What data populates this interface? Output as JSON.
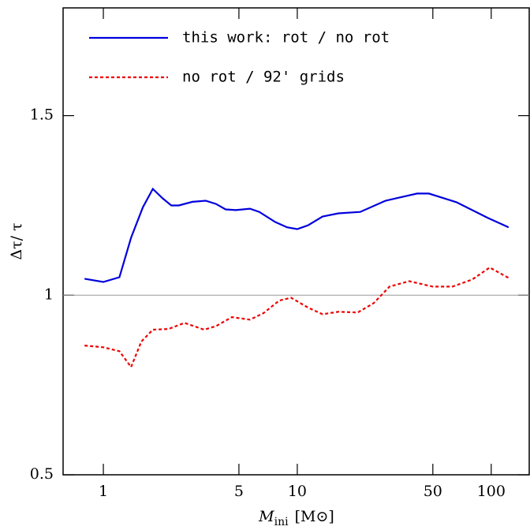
{
  "chart_data": {
    "type": "line",
    "xlabel": {
      "symbol": "M",
      "subscript": "ini",
      "unit": "[M⊙]"
    },
    "ylabel": "Δτ/ τ",
    "xlog": true,
    "xlim": [
      0.62,
      157
    ],
    "ylim": [
      0.5,
      1.8
    ],
    "xticks": [
      1,
      5,
      10,
      50,
      100
    ],
    "yticks": [
      0.5,
      1,
      1.5
    ],
    "hline": 1,
    "legend": "upper left",
    "series": [
      {
        "name": "this work: rot / no rot",
        "color": "#0000dd",
        "dash": false,
        "x": [
          0.8,
          1.0,
          1.21,
          1.39,
          1.6,
          1.8,
          2.02,
          2.24,
          2.45,
          2.88,
          3.37,
          3.81,
          4.27,
          4.82,
          5.7,
          6.37,
          7.68,
          8.86,
          10,
          11.4,
          13.5,
          16.3,
          21.1,
          28.5,
          41.5,
          47.7,
          66.2,
          96.2,
          123
        ],
        "values": [
          1.046,
          1.037,
          1.05,
          1.16,
          1.245,
          1.296,
          1.27,
          1.25,
          1.25,
          1.26,
          1.263,
          1.254,
          1.239,
          1.237,
          1.241,
          1.232,
          1.204,
          1.189,
          1.184,
          1.195,
          1.219,
          1.228,
          1.232,
          1.263,
          1.283,
          1.283,
          1.259,
          1.215,
          1.189
        ]
      },
      {
        "name": "no rot / 92' grids",
        "color": "#ee0000",
        "dash": true,
        "x": [
          0.8,
          1.0,
          1.21,
          1.39,
          1.57,
          1.8,
          2.17,
          2.62,
          3.31,
          3.81,
          4.6,
          5.7,
          6.69,
          8.07,
          9.28,
          11.4,
          13.5,
          16.3,
          20.5,
          24.8,
          29.9,
          37.7,
          50.0,
          63.2,
          79.9,
          98.2,
          123
        ],
        "values": [
          0.86,
          0.855,
          0.844,
          0.8,
          0.871,
          0.904,
          0.906,
          0.923,
          0.904,
          0.914,
          0.939,
          0.932,
          0.95,
          0.985,
          0.993,
          0.965,
          0.947,
          0.954,
          0.952,
          0.978,
          1.024,
          1.039,
          1.024,
          1.024,
          1.044,
          1.077,
          1.048
        ]
      }
    ]
  }
}
